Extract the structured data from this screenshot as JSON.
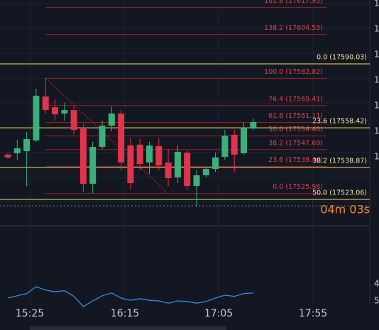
{
  "red_fib": [
    {
      "label": "161.8 (17617.93)",
      "price": 17617.93
    },
    {
      "label": "138.2 (17604.53)",
      "price": 17604.53
    },
    {
      "label": "100.0 (17582.82)",
      "price": 17582.82
    },
    {
      "label": "76.4 (17569.41)",
      "price": 17569.41
    },
    {
      "label": "61.8 (17561.11)",
      "price": 17561.11
    },
    {
      "label": "50.0 (17554.40)",
      "price": 17554.4
    },
    {
      "label": "38.2 (17547.69)",
      "price": 17547.69
    },
    {
      "label": "23.6 (17539.40)",
      "price": 17539.4
    },
    {
      "label": "0.0 (17525.98)",
      "price": 17525.98
    }
  ],
  "yellow_fib": [
    {
      "label": "0.0 (17590.03)",
      "price": 17590.03
    },
    {
      "label": "23.6 (17558.42)",
      "price": 17558.42
    },
    {
      "label": "38.2 (17538.87)",
      "price": 17538.87
    },
    {
      "label": "50.0 (17523.06)",
      "price": 17523.06
    }
  ],
  "candles": [
    {
      "open": 17545.2,
      "high": 17546.2,
      "low": 17543.1,
      "close": 17543.8
    },
    {
      "open": 17545.9,
      "high": 17552.5,
      "low": 17542.4,
      "close": 17548.3
    },
    {
      "open": 17546.9,
      "high": 17556.4,
      "low": 17529.7,
      "close": 17552.9
    },
    {
      "open": 17552.2,
      "high": 17577.8,
      "low": 17551.5,
      "close": 17574.3
    },
    {
      "open": 17573.9,
      "high": 17583.0,
      "low": 17565.5,
      "close": 17567.2
    },
    {
      "open": 17568.6,
      "high": 17572.5,
      "low": 17562.0,
      "close": 17565.1
    },
    {
      "open": 17565.5,
      "high": 17570.8,
      "low": 17562.0,
      "close": 17567.2
    },
    {
      "open": 17567.2,
      "high": 17569.0,
      "low": 17555.0,
      "close": 17557.4
    },
    {
      "open": 17558.5,
      "high": 17560.2,
      "low": 17526.6,
      "close": 17530.8
    },
    {
      "open": 17530.8,
      "high": 17551.5,
      "low": 17526.2,
      "close": 17549.0
    },
    {
      "open": 17549.0,
      "high": 17562.0,
      "low": 17548.0,
      "close": 17559.5
    },
    {
      "open": 17559.5,
      "high": 17569.0,
      "low": 17556.7,
      "close": 17565.5
    },
    {
      "open": 17565.5,
      "high": 17567.2,
      "low": 17537.4,
      "close": 17541.3
    },
    {
      "open": 17549.7,
      "high": 17553.2,
      "low": 17528.0,
      "close": 17531.1
    },
    {
      "open": 17550.1,
      "high": 17553.2,
      "low": 17537.4,
      "close": 17540.6
    },
    {
      "open": 17541.3,
      "high": 17551.5,
      "low": 17535.7,
      "close": 17549.7
    },
    {
      "open": 17549.4,
      "high": 17553.2,
      "low": 17537.4,
      "close": 17539.9
    },
    {
      "open": 17541.3,
      "high": 17548.0,
      "low": 17529.7,
      "close": 17533.6
    },
    {
      "open": 17533.9,
      "high": 17549.7,
      "low": 17531.1,
      "close": 17546.6
    },
    {
      "open": 17546.2,
      "high": 17547.3,
      "low": 17527.6,
      "close": 17529.7
    },
    {
      "open": 17529.7,
      "high": 17537.4,
      "low": 17519.6,
      "close": 17535.0
    },
    {
      "open": 17535.0,
      "high": 17539.2,
      "low": 17533.9,
      "close": 17538.1
    },
    {
      "open": 17538.1,
      "high": 17546.2,
      "low": 17536.4,
      "close": 17543.8
    },
    {
      "open": 17544.1,
      "high": 17557.4,
      "low": 17542.7,
      "close": 17554.6
    },
    {
      "open": 17555.0,
      "high": 17557.4,
      "low": 17536.4,
      "close": 17545.2
    },
    {
      "open": 17545.9,
      "high": 17561.3,
      "low": 17545.2,
      "close": 17558.5
    },
    {
      "open": 17558.1,
      "high": 17563.0,
      "low": 17557.4,
      "close": 17561.3
    }
  ],
  "indicator": {
    "values": [
      25,
      29,
      33,
      45,
      39,
      36,
      38,
      28,
      10,
      20,
      29,
      34,
      25,
      21,
      24,
      21,
      20,
      16,
      20,
      19,
      16,
      19,
      25,
      30,
      28,
      33,
      34
    ],
    "ylim": [
      0,
      100
    ],
    "color": "#2f8fe0"
  },
  "time_labels": [
    "15:25",
    "16:15",
    "17:05",
    "17:55"
  ],
  "price_axis_labels": [
    "1",
    "1",
    "1",
    "1",
    "1",
    "1",
    "1"
  ],
  "indicator_axis_labels": [
    "4",
    "5"
  ],
  "countdown": "04m 03s"
}
